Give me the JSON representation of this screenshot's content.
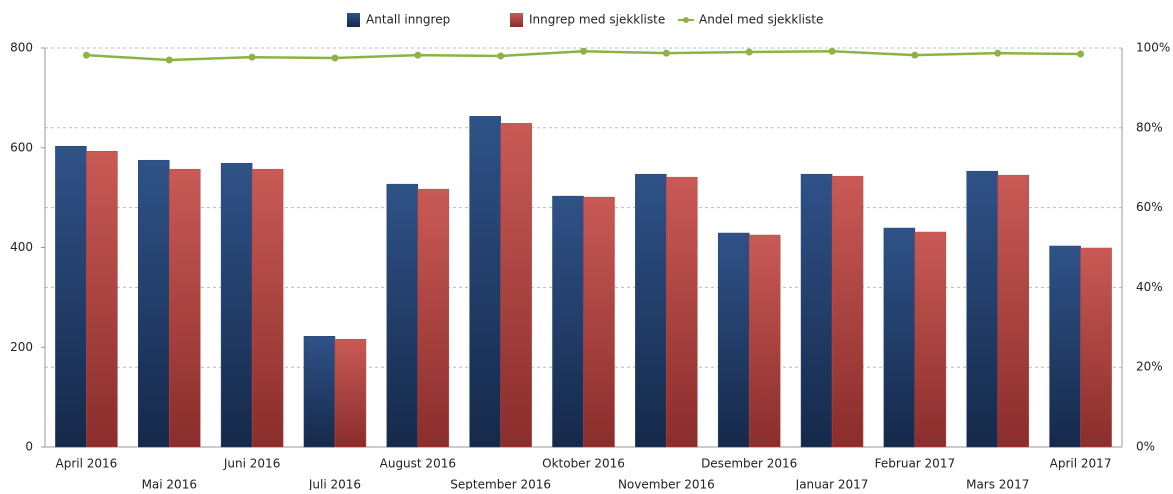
{
  "chart_data": {
    "type": "bar",
    "categories": [
      "April 2016",
      "Mai 2016",
      "Juni 2016",
      "Juli 2016",
      "August 2016",
      "September 2016",
      "Oktober 2016",
      "November 2016",
      "Desember 2016",
      "Januar 2017",
      "Februar 2017",
      "Mars 2017",
      "April 2017"
    ],
    "series": [
      {
        "name": "Antall inngrep",
        "color": "#24406e",
        "values": [
          603,
          575,
          569,
          222,
          527,
          663,
          503,
          547,
          429,
          547,
          439,
          553,
          403
        ]
      },
      {
        "name": "Inngrep med sjekkliste",
        "color": "#b84a47",
        "values": [
          593,
          557,
          557,
          216,
          517,
          649,
          501,
          541,
          425,
          543,
          431,
          545,
          399
        ]
      },
      {
        "name": "Andel med sjekkliste",
        "color": "#8db346",
        "type": "line",
        "axis": "y2",
        "values": [
          98.2,
          97,
          97.7,
          97.5,
          98.2,
          98,
          99.2,
          98.7,
          99,
          99.2,
          98.2,
          98.7,
          98.5
        ]
      }
    ],
    "ylim": [
      0,
      800
    ],
    "yticks": [
      0,
      200,
      400,
      600,
      800
    ],
    "y2lim": [
      0,
      100
    ],
    "y2ticks": [
      {
        "value": 0,
        "label": "0%"
      },
      {
        "value": 20,
        "label": "20%"
      },
      {
        "value": 40,
        "label": "40%"
      },
      {
        "value": 60,
        "label": "60%"
      },
      {
        "value": 80,
        "label": "80%"
      },
      {
        "value": 100,
        "label": "100%"
      }
    ],
    "grid": true,
    "legend": "top"
  }
}
